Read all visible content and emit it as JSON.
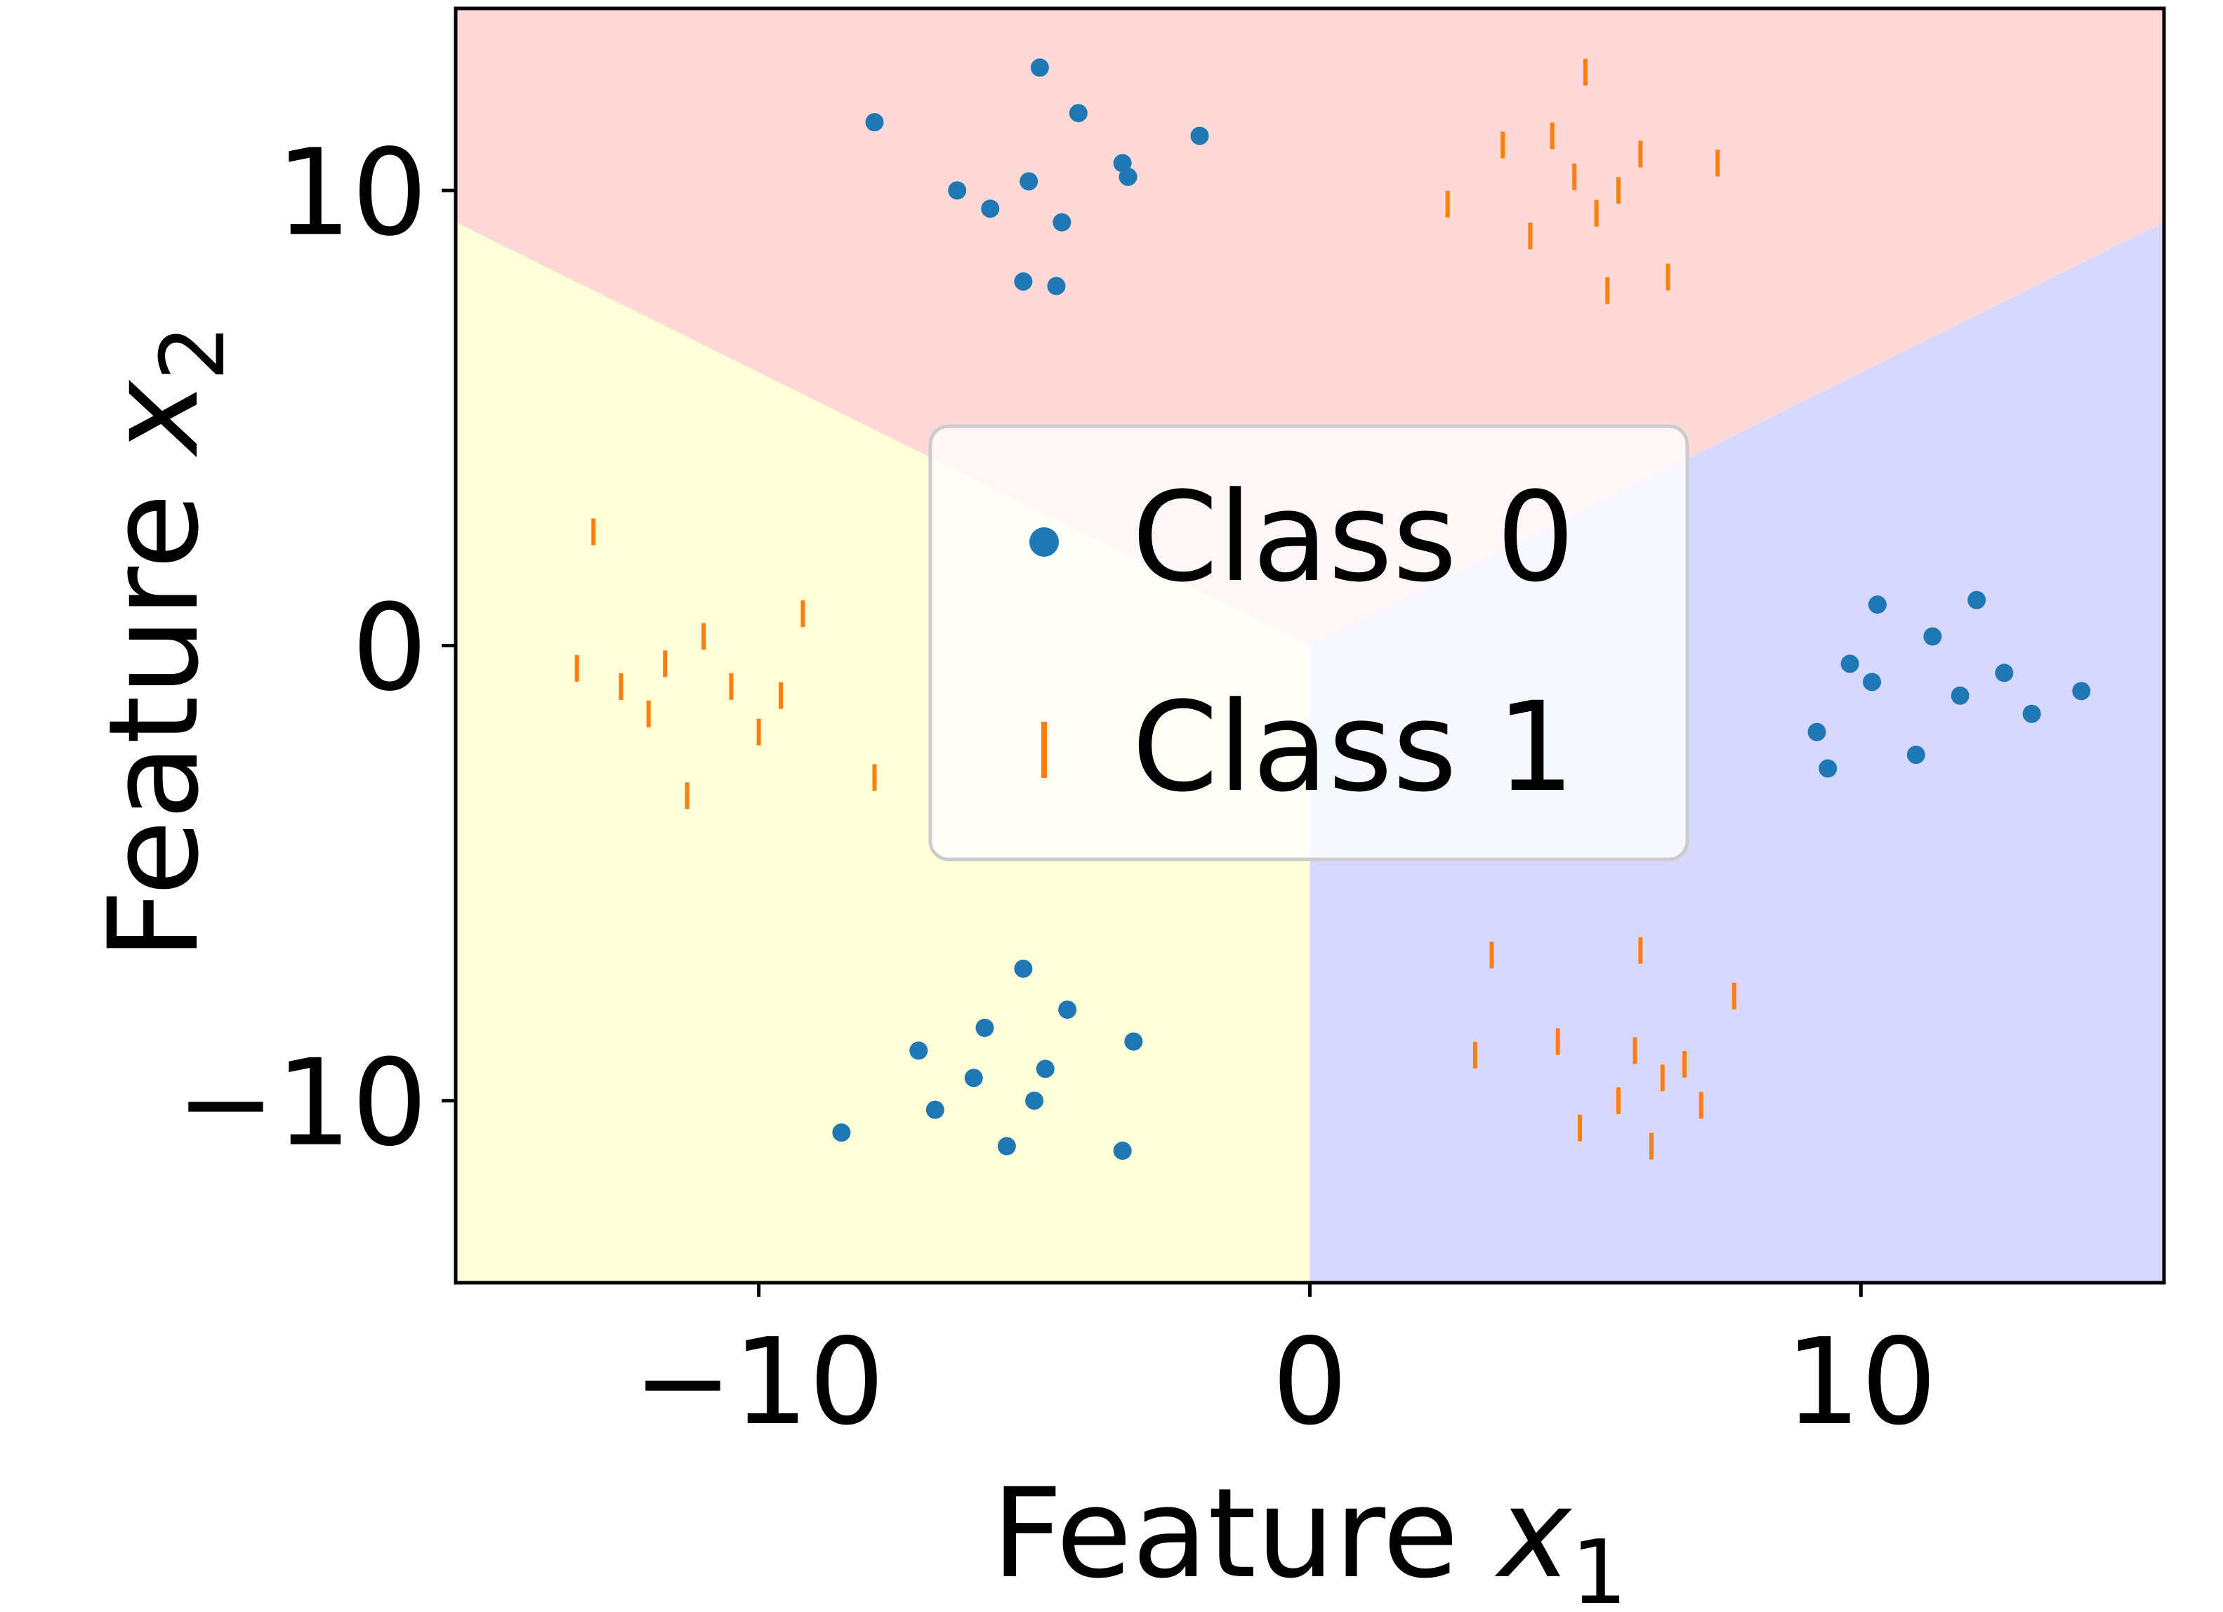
{
  "chart_data": {
    "type": "scatter",
    "xlabel": {
      "text": "Feature ",
      "var": "x",
      "sub": "1"
    },
    "ylabel": {
      "text": "Feature ",
      "var": "x",
      "sub": "2"
    },
    "xlim": [
      -15.5,
      15.5
    ],
    "ylim": [
      -14,
      14
    ],
    "xticks": [
      -10,
      0,
      10
    ],
    "yticks": [
      -10,
      0,
      10
    ],
    "xtick_labels": [
      "−10",
      "0",
      "10"
    ],
    "ytick_labels": [
      "−10",
      "0",
      "10"
    ],
    "grid": false,
    "legend": {
      "placement": "center",
      "entries": [
        {
          "label": "Class 0",
          "marker": "dot",
          "color": "#1f77b4"
        },
        {
          "label": "Class 1",
          "marker": "vline",
          "color": "#ff7f0e"
        }
      ]
    },
    "regions": [
      {
        "name": "top",
        "color": "#ffd8d8",
        "polygon": [
          [
            -15.5,
            14
          ],
          [
            15.5,
            14
          ],
          [
            15.5,
            9.3
          ],
          [
            0,
            0
          ],
          [
            -15.5,
            9.3
          ]
        ]
      },
      {
        "name": "left",
        "color": "#ffffd8",
        "polygon": [
          [
            -15.5,
            9.3
          ],
          [
            0,
            0
          ],
          [
            0,
            -14
          ],
          [
            -15.5,
            -14
          ]
        ]
      },
      {
        "name": "right",
        "color": "#d8d8ff",
        "polygon": [
          [
            15.5,
            9.3
          ],
          [
            0,
            0
          ],
          [
            0,
            -14
          ],
          [
            15.5,
            -14
          ]
        ]
      }
    ],
    "series": [
      {
        "name": "Class 0",
        "marker": "dot",
        "color": "#1f77b4",
        "clusters": [
          {
            "center": [
              -5,
              10
            ],
            "approx_points": 100
          },
          {
            "center": [
              11,
              -1
            ],
            "approx_points": 100
          },
          {
            "center": [
              -5.5,
              -9.3
            ],
            "approx_points": 100
          }
        ],
        "points": [
          [
            -7.9,
            11.5
          ],
          [
            -2.0,
            11.2
          ],
          [
            -4.9,
            12.7
          ],
          [
            -4.2,
            11.7
          ],
          [
            -5.2,
            8.0
          ],
          [
            -4.6,
            7.9
          ],
          [
            -3.4,
            10.6
          ],
          [
            -3.3,
            10.3
          ],
          [
            -6.4,
            10.0
          ],
          [
            -5.8,
            9.6
          ],
          [
            -5.1,
            10.2
          ],
          [
            -4.5,
            9.3
          ],
          [
            9.2,
            -1.9
          ],
          [
            14.0,
            -1.0
          ],
          [
            10.3,
            0.9
          ],
          [
            12.1,
            1.0
          ],
          [
            9.4,
            -2.7
          ],
          [
            13.1,
            -1.5
          ],
          [
            11.3,
            0.2
          ],
          [
            10.2,
            -0.8
          ],
          [
            11.8,
            -1.1
          ],
          [
            12.6,
            -0.6
          ],
          [
            9.8,
            -0.4
          ],
          [
            11.0,
            -2.4
          ],
          [
            -8.5,
            -10.7
          ],
          [
            -3.4,
            -11.1
          ],
          [
            -3.2,
            -8.7
          ],
          [
            -5.2,
            -7.1
          ],
          [
            -5.5,
            -11.0
          ],
          [
            -6.1,
            -9.5
          ],
          [
            -7.1,
            -8.9
          ],
          [
            -4.8,
            -9.3
          ],
          [
            -5.9,
            -8.4
          ],
          [
            -6.8,
            -10.2
          ],
          [
            -4.4,
            -8.0
          ],
          [
            -5.0,
            -10.0
          ]
        ]
      },
      {
        "name": "Class 1",
        "marker": "vline",
        "color": "#ff7f0e",
        "clusters": [
          {
            "center": [
              5,
              10
            ],
            "approx_points": 100
          },
          {
            "center": [
              -11,
              -1
            ],
            "approx_points": 100
          },
          {
            "center": [
              6,
              -9.3
            ],
            "approx_points": 100
          }
        ],
        "points": [
          [
            3.5,
            11.0
          ],
          [
            5.0,
            12.6
          ],
          [
            2.5,
            9.7
          ],
          [
            6.5,
            8.1
          ],
          [
            4.0,
            9.0
          ],
          [
            5.4,
            7.8
          ],
          [
            7.4,
            10.6
          ],
          [
            4.8,
            10.3
          ],
          [
            5.6,
            10.0
          ],
          [
            4.4,
            11.2
          ],
          [
            5.2,
            9.5
          ],
          [
            6.0,
            10.8
          ],
          [
            -13.0,
            2.5
          ],
          [
            -7.9,
            -2.9
          ],
          [
            -13.3,
            -0.5
          ],
          [
            -9.2,
            0.7
          ],
          [
            -11.3,
            -3.3
          ],
          [
            -10.5,
            -0.9
          ],
          [
            -11.7,
            -0.4
          ],
          [
            -12.0,
            -1.5
          ],
          [
            -10.0,
            -1.9
          ],
          [
            -11.0,
            0.2
          ],
          [
            -12.5,
            -0.9
          ],
          [
            -9.6,
            -1.1
          ],
          [
            3.3,
            -6.8
          ],
          [
            6.0,
            -6.7
          ],
          [
            7.7,
            -7.7
          ],
          [
            3.0,
            -9.0
          ],
          [
            4.9,
            -10.6
          ],
          [
            7.1,
            -10.1
          ],
          [
            5.9,
            -8.9
          ],
          [
            6.4,
            -9.5
          ],
          [
            5.6,
            -10.0
          ],
          [
            6.8,
            -9.2
          ],
          [
            4.5,
            -8.7
          ],
          [
            6.2,
            -11.0
          ]
        ]
      }
    ]
  }
}
